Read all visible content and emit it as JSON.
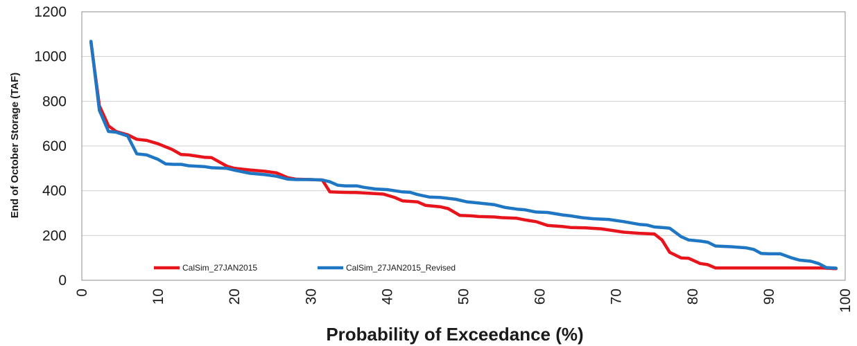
{
  "chart_data": {
    "type": "line",
    "xlabel": "Probability of Exceedance (%)",
    "ylabel": "End of October Storage (TAF)",
    "xlim": [
      0,
      100
    ],
    "ylim": [
      0,
      1200
    ],
    "xticks": [
      0,
      10,
      20,
      30,
      40,
      50,
      60,
      70,
      80,
      90,
      100
    ],
    "yticks": [
      0,
      200,
      400,
      600,
      800,
      1000,
      1200
    ],
    "grid": "horizontal",
    "legend_position": "bottom-left inside plot",
    "series": [
      {
        "name": "CalSim_27JAN2015",
        "color": "#e8141c",
        "points": [
          [
            1.2,
            1065
          ],
          [
            2.3,
            780
          ],
          [
            3.5,
            690
          ],
          [
            4.5,
            665
          ],
          [
            6,
            650
          ],
          [
            7.2,
            630
          ],
          [
            8.5,
            625
          ],
          [
            10,
            610
          ],
          [
            11.8,
            585
          ],
          [
            13,
            562
          ],
          [
            14,
            560
          ],
          [
            15,
            555
          ],
          [
            16,
            550
          ],
          [
            17,
            548
          ],
          [
            19,
            510
          ],
          [
            20,
            500
          ],
          [
            22,
            493
          ],
          [
            24,
            487
          ],
          [
            25.5,
            480
          ],
          [
            27,
            458
          ],
          [
            28,
            452
          ],
          [
            30,
            450
          ],
          [
            31.5,
            448
          ],
          [
            32.5,
            395
          ],
          [
            34,
            393
          ],
          [
            36,
            392
          ],
          [
            38,
            388
          ],
          [
            39.5,
            385
          ],
          [
            41,
            370
          ],
          [
            42,
            355
          ],
          [
            44,
            350
          ],
          [
            45,
            335
          ],
          [
            47,
            328
          ],
          [
            48,
            320
          ],
          [
            49.5,
            290
          ],
          [
            51,
            288
          ],
          [
            52,
            285
          ],
          [
            54,
            283
          ],
          [
            55,
            280
          ],
          [
            57,
            277
          ],
          [
            58,
            270
          ],
          [
            59.5,
            262
          ],
          [
            61,
            245
          ],
          [
            63,
            240
          ],
          [
            64,
            236
          ],
          [
            66,
            234
          ],
          [
            67,
            232
          ],
          [
            68,
            230
          ],
          [
            70,
            220
          ],
          [
            71,
            215
          ],
          [
            73,
            210
          ],
          [
            75,
            207
          ],
          [
            76,
            180
          ],
          [
            77,
            125
          ],
          [
            78.5,
            100
          ],
          [
            79.5,
            98
          ],
          [
            81,
            75
          ],
          [
            82,
            70
          ],
          [
            83,
            55
          ],
          [
            85,
            55
          ],
          [
            90,
            55
          ],
          [
            95,
            55
          ],
          [
            97,
            55
          ],
          [
            98.8,
            52
          ]
        ]
      },
      {
        "name": "CalSim_27JAN2015_Revised",
        "color": "#1f77c4",
        "points": [
          [
            1.2,
            1068
          ],
          [
            2.3,
            760
          ],
          [
            3.5,
            665
          ],
          [
            4.5,
            662
          ],
          [
            6,
            645
          ],
          [
            7.2,
            565
          ],
          [
            8.5,
            560
          ],
          [
            10,
            540
          ],
          [
            11,
            520
          ],
          [
            12,
            518
          ],
          [
            13,
            518
          ],
          [
            14,
            512
          ],
          [
            16,
            508
          ],
          [
            17,
            503
          ],
          [
            19,
            500
          ],
          [
            20,
            492
          ],
          [
            22,
            478
          ],
          [
            24,
            472
          ],
          [
            25.5,
            465
          ],
          [
            27,
            452
          ],
          [
            28,
            450
          ],
          [
            30,
            450
          ],
          [
            31.5,
            448
          ],
          [
            32.5,
            440
          ],
          [
            33.5,
            425
          ],
          [
            34.5,
            422
          ],
          [
            36,
            422
          ],
          [
            37,
            415
          ],
          [
            38.5,
            408
          ],
          [
            40,
            405
          ],
          [
            42,
            395
          ],
          [
            43,
            393
          ],
          [
            44,
            383
          ],
          [
            45.5,
            372
          ],
          [
            47,
            370
          ],
          [
            49,
            362
          ],
          [
            50.5,
            350
          ],
          [
            52,
            345
          ],
          [
            54,
            338
          ],
          [
            55.5,
            325
          ],
          [
            57,
            318
          ],
          [
            58,
            315
          ],
          [
            59.5,
            305
          ],
          [
            61,
            303
          ],
          [
            63,
            292
          ],
          [
            64,
            288
          ],
          [
            65.5,
            280
          ],
          [
            67,
            275
          ],
          [
            69,
            272
          ],
          [
            71,
            262
          ],
          [
            73,
            250
          ],
          [
            74,
            247
          ],
          [
            75,
            238
          ],
          [
            76,
            236
          ],
          [
            77,
            233
          ],
          [
            78.5,
            195
          ],
          [
            79.5,
            180
          ],
          [
            81,
            175
          ],
          [
            82,
            170
          ],
          [
            83,
            153
          ],
          [
            85,
            150
          ],
          [
            87,
            145
          ],
          [
            88,
            138
          ],
          [
            89,
            120
          ],
          [
            90,
            118
          ],
          [
            91.5,
            118
          ],
          [
            93,
            100
          ],
          [
            94,
            90
          ],
          [
            95.5,
            85
          ],
          [
            96.5,
            75
          ],
          [
            97.5,
            57
          ],
          [
            98.8,
            54
          ]
        ]
      }
    ]
  }
}
